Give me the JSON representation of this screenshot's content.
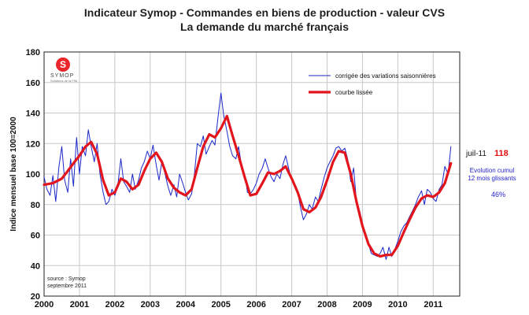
{
  "header": {
    "title": "Indicateur Symop - Commandes en biens de production  -  valeur CVS",
    "subtitle": "La demande du marché français"
  },
  "logo": {
    "mark": "S",
    "name": "SYMOP",
    "tagline": "Solutions de la FIM"
  },
  "source": {
    "line1": "source : Symop",
    "line2": "septembre 2011"
  },
  "annotation": {
    "date_label": "juil-11",
    "last_value": "118",
    "evolution_label_1": "Evolution cumul",
    "evolution_label_2": "12 mois glissants",
    "evolution_value": "46%"
  },
  "colors": {
    "raw_series": "#1c28c8",
    "smooth_series": "#e2141c",
    "grid": "#c8c8c8",
    "axis": "#222222"
  },
  "chart_data": {
    "type": "line",
    "title": "Indicateur Symop - Commandes en biens de production - valeur CVS",
    "xlabel": "",
    "ylabel": "Indice mensuel base 100=2000",
    "ylim": [
      20,
      180
    ],
    "yticks": [
      20,
      40,
      60,
      80,
      100,
      120,
      140,
      160,
      180
    ],
    "xlim": [
      2000,
      2011.75
    ],
    "xticks": [
      2000,
      2001,
      2002,
      2003,
      2004,
      2005,
      2006,
      2007,
      2008,
      2009,
      2010,
      2011
    ],
    "xtick_labels": [
      "2000",
      "2001",
      "2002",
      "2003",
      "2004",
      "2005",
      "2006",
      "2007",
      "2008",
      "2009",
      "2010",
      "2011"
    ],
    "grid": true,
    "legend_position": "top-right",
    "series": [
      {
        "name": "corrigée des variations saisonnières",
        "style": "thin",
        "points": [
          [
            2000.0,
            98
          ],
          [
            2000.08,
            90
          ],
          [
            2000.17,
            86
          ],
          [
            2000.25,
            99
          ],
          [
            2000.33,
            82
          ],
          [
            2000.42,
            105
          ],
          [
            2000.5,
            118
          ],
          [
            2000.58,
            96
          ],
          [
            2000.67,
            88
          ],
          [
            2000.75,
            110
          ],
          [
            2000.83,
            92
          ],
          [
            2000.92,
            124
          ],
          [
            2001.0,
            100
          ],
          [
            2001.08,
            118
          ],
          [
            2001.17,
            112
          ],
          [
            2001.25,
            129
          ],
          [
            2001.33,
            118
          ],
          [
            2001.42,
            108
          ],
          [
            2001.5,
            120
          ],
          [
            2001.58,
            100
          ],
          [
            2001.67,
            88
          ],
          [
            2001.75,
            80
          ],
          [
            2001.83,
            82
          ],
          [
            2001.92,
            90
          ],
          [
            2002.0,
            86
          ],
          [
            2002.08,
            92
          ],
          [
            2002.17,
            110
          ],
          [
            2002.25,
            95
          ],
          [
            2002.33,
            92
          ],
          [
            2002.42,
            88
          ],
          [
            2002.5,
            100
          ],
          [
            2002.58,
            90
          ],
          [
            2002.67,
            96
          ],
          [
            2002.75,
            104
          ],
          [
            2002.83,
            108
          ],
          [
            2002.92,
            115
          ],
          [
            2003.0,
            110
          ],
          [
            2003.08,
            119
          ],
          [
            2003.17,
            106
          ],
          [
            2003.25,
            96
          ],
          [
            2003.33,
            108
          ],
          [
            2003.42,
            100
          ],
          [
            2003.5,
            92
          ],
          [
            2003.58,
            86
          ],
          [
            2003.67,
            93
          ],
          [
            2003.75,
            85
          ],
          [
            2003.83,
            100
          ],
          [
            2003.92,
            94
          ],
          [
            2004.0,
            88
          ],
          [
            2004.08,
            83
          ],
          [
            2004.17,
            87
          ],
          [
            2004.25,
            100
          ],
          [
            2004.33,
            120
          ],
          [
            2004.42,
            118
          ],
          [
            2004.5,
            125
          ],
          [
            2004.58,
            113
          ],
          [
            2004.67,
            118
          ],
          [
            2004.75,
            122
          ],
          [
            2004.83,
            119
          ],
          [
            2004.92,
            138
          ],
          [
            2005.0,
            153
          ],
          [
            2005.08,
            138
          ],
          [
            2005.17,
            128
          ],
          [
            2005.25,
            118
          ],
          [
            2005.33,
            112
          ],
          [
            2005.42,
            110
          ],
          [
            2005.5,
            118
          ],
          [
            2005.58,
            106
          ],
          [
            2005.67,
            100
          ],
          [
            2005.75,
            88
          ],
          [
            2005.83,
            87
          ],
          [
            2005.92,
            90
          ],
          [
            2006.0,
            94
          ],
          [
            2006.08,
            100
          ],
          [
            2006.17,
            104
          ],
          [
            2006.25,
            110
          ],
          [
            2006.33,
            104
          ],
          [
            2006.42,
            98
          ],
          [
            2006.5,
            95
          ],
          [
            2006.58,
            100
          ],
          [
            2006.67,
            97
          ],
          [
            2006.75,
            106
          ],
          [
            2006.83,
            112
          ],
          [
            2006.92,
            103
          ],
          [
            2007.0,
            96
          ],
          [
            2007.08,
            92
          ],
          [
            2007.17,
            88
          ],
          [
            2007.25,
            78
          ],
          [
            2007.33,
            70
          ],
          [
            2007.42,
            74
          ],
          [
            2007.5,
            80
          ],
          [
            2007.58,
            77
          ],
          [
            2007.67,
            85
          ],
          [
            2007.75,
            82
          ],
          [
            2007.83,
            90
          ],
          [
            2007.92,
            98
          ],
          [
            2008.0,
            104
          ],
          [
            2008.08,
            108
          ],
          [
            2008.17,
            112
          ],
          [
            2008.25,
            117
          ],
          [
            2008.33,
            118
          ],
          [
            2008.42,
            115
          ],
          [
            2008.5,
            117
          ],
          [
            2008.58,
            110
          ],
          [
            2008.67,
            95
          ],
          [
            2008.75,
            104
          ],
          [
            2008.83,
            82
          ],
          [
            2008.92,
            76
          ],
          [
            2009.0,
            68
          ],
          [
            2009.08,
            60
          ],
          [
            2009.17,
            54
          ],
          [
            2009.25,
            48
          ],
          [
            2009.33,
            47
          ],
          [
            2009.42,
            46
          ],
          [
            2009.5,
            48
          ],
          [
            2009.58,
            52
          ],
          [
            2009.67,
            44
          ],
          [
            2009.75,
            52
          ],
          [
            2009.83,
            46
          ],
          [
            2009.92,
            51
          ],
          [
            2010.0,
            56
          ],
          [
            2010.08,
            62
          ],
          [
            2010.17,
            66
          ],
          [
            2010.25,
            68
          ],
          [
            2010.33,
            72
          ],
          [
            2010.42,
            76
          ],
          [
            2010.5,
            80
          ],
          [
            2010.58,
            85
          ],
          [
            2010.67,
            89
          ],
          [
            2010.75,
            80
          ],
          [
            2010.83,
            90
          ],
          [
            2010.92,
            88
          ],
          [
            2011.0,
            84
          ],
          [
            2011.08,
            82
          ],
          [
            2011.17,
            90
          ],
          [
            2011.25,
            93
          ],
          [
            2011.33,
            105
          ],
          [
            2011.42,
            100
          ],
          [
            2011.5,
            118
          ]
        ]
      },
      {
        "name": "courbe lissée",
        "style": "thick",
        "points": [
          [
            2000.0,
            93
          ],
          [
            2000.25,
            94
          ],
          [
            2000.5,
            97
          ],
          [
            2000.67,
            102
          ],
          [
            2000.83,
            107
          ],
          [
            2001.0,
            112
          ],
          [
            2001.17,
            118
          ],
          [
            2001.33,
            121
          ],
          [
            2001.5,
            113
          ],
          [
            2001.67,
            96
          ],
          [
            2001.83,
            86
          ],
          [
            2002.0,
            88
          ],
          [
            2002.17,
            97
          ],
          [
            2002.33,
            95
          ],
          [
            2002.5,
            90
          ],
          [
            2002.67,
            93
          ],
          [
            2002.83,
            102
          ],
          [
            2003.0,
            110
          ],
          [
            2003.17,
            114
          ],
          [
            2003.33,
            108
          ],
          [
            2003.5,
            97
          ],
          [
            2003.67,
            91
          ],
          [
            2003.83,
            88
          ],
          [
            2004.0,
            86
          ],
          [
            2004.17,
            90
          ],
          [
            2004.33,
            104
          ],
          [
            2004.5,
            118
          ],
          [
            2004.67,
            126
          ],
          [
            2004.83,
            124
          ],
          [
            2005.0,
            130
          ],
          [
            2005.17,
            138
          ],
          [
            2005.33,
            125
          ],
          [
            2005.5,
            112
          ],
          [
            2005.67,
            98
          ],
          [
            2005.83,
            86
          ],
          [
            2006.0,
            87
          ],
          [
            2006.17,
            94
          ],
          [
            2006.33,
            101
          ],
          [
            2006.5,
            100
          ],
          [
            2006.67,
            102
          ],
          [
            2006.83,
            105
          ],
          [
            2007.0,
            97
          ],
          [
            2007.17,
            88
          ],
          [
            2007.33,
            77
          ],
          [
            2007.5,
            75
          ],
          [
            2007.67,
            78
          ],
          [
            2007.83,
            85
          ],
          [
            2008.0,
            96
          ],
          [
            2008.17,
            108
          ],
          [
            2008.33,
            115
          ],
          [
            2008.5,
            114
          ],
          [
            2008.67,
            100
          ],
          [
            2008.83,
            82
          ],
          [
            2009.0,
            66
          ],
          [
            2009.17,
            54
          ],
          [
            2009.33,
            48
          ],
          [
            2009.5,
            46
          ],
          [
            2009.67,
            47
          ],
          [
            2009.83,
            47
          ],
          [
            2010.0,
            53
          ],
          [
            2010.17,
            62
          ],
          [
            2010.33,
            70
          ],
          [
            2010.5,
            78
          ],
          [
            2010.67,
            84
          ],
          [
            2010.83,
            86
          ],
          [
            2011.0,
            85
          ],
          [
            2011.17,
            88
          ],
          [
            2011.33,
            94
          ],
          [
            2011.5,
            107
          ]
        ]
      }
    ]
  }
}
